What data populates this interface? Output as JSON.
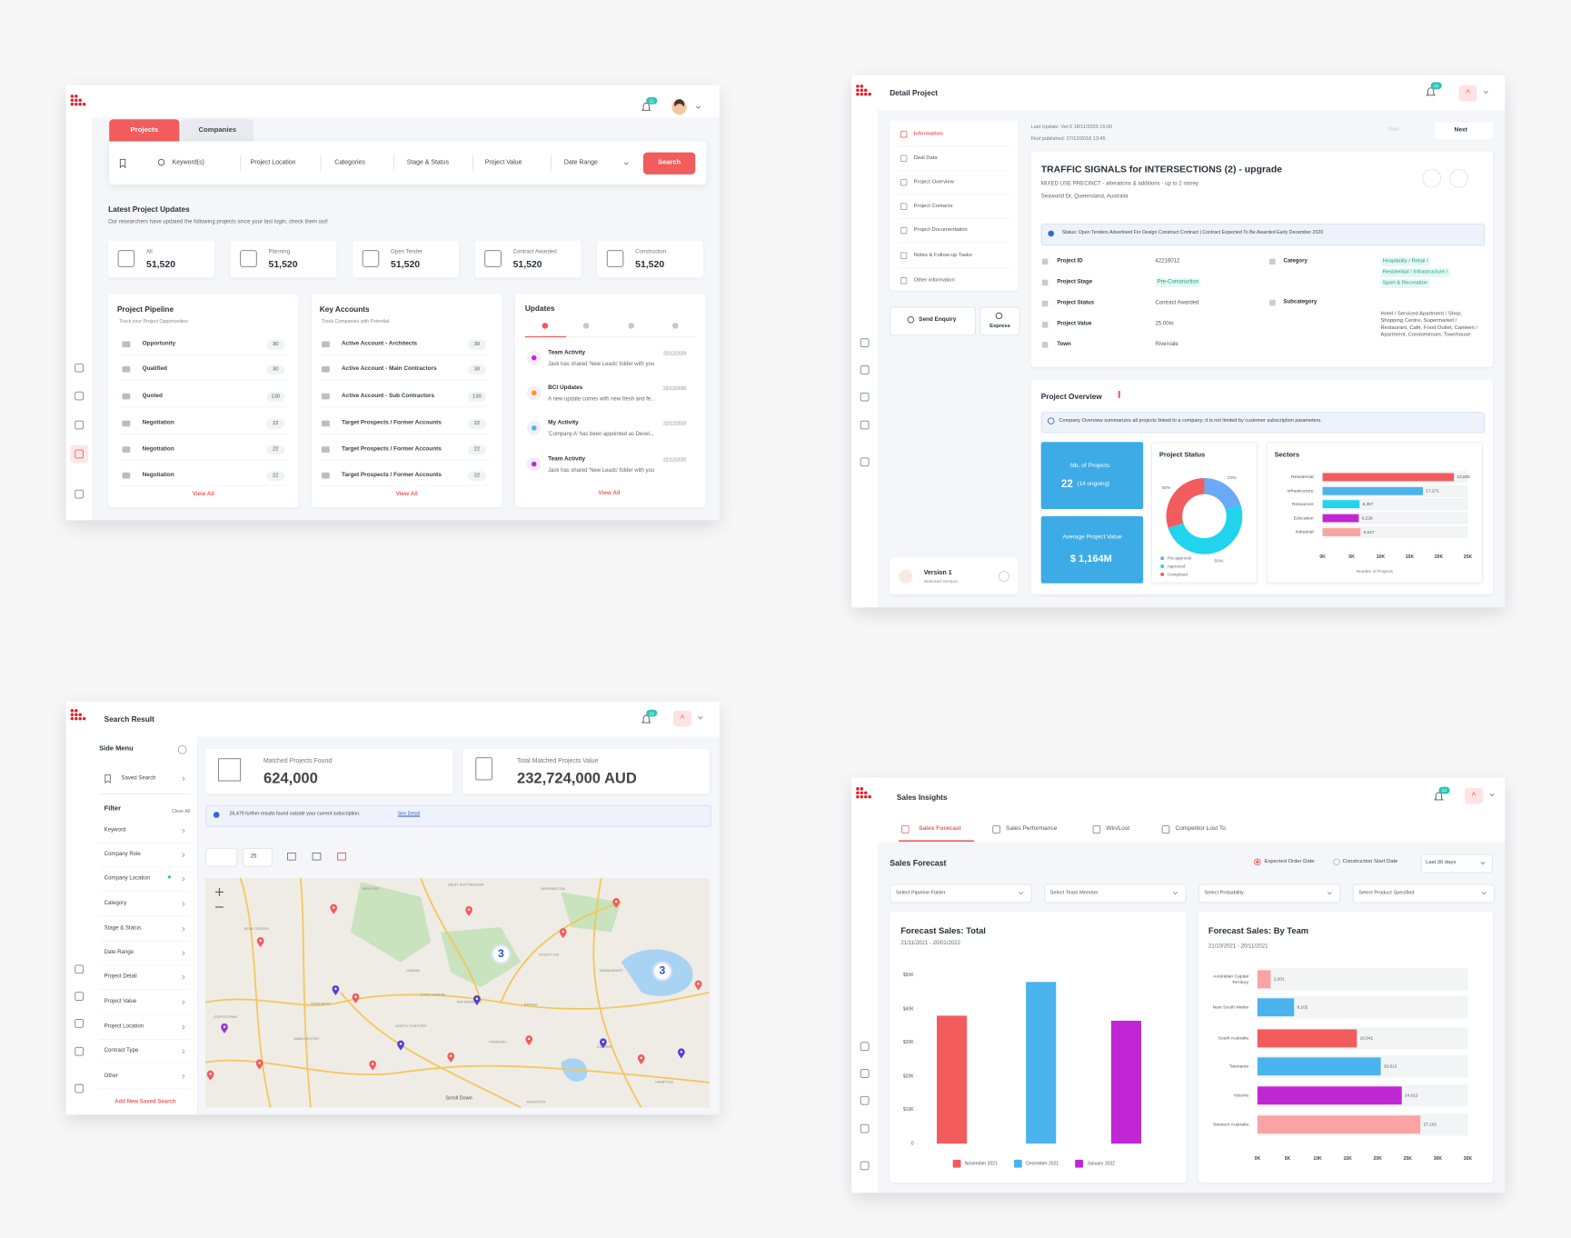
{
  "projects_screen": {
    "notifications": "22",
    "tabs": [
      "Projects",
      "Companies"
    ],
    "search_fields": [
      "Keyword(s)",
      "Project Location",
      "Categories",
      "Stage & Status",
      "Project Value",
      "Date Range"
    ],
    "search_button": "Search",
    "updates_title": "Latest Project Updates",
    "updates_subtitle": "Our researchers have updated the following projects since your last login, check them out!",
    "stats": [
      {
        "label": "All",
        "value": "51,520"
      },
      {
        "label": "Planning",
        "value": "51,520"
      },
      {
        "label": "Open Tender",
        "value": "51,520"
      },
      {
        "label": "Contract Awarded",
        "value": "51,520"
      },
      {
        "label": "Construction",
        "value": "51,520"
      }
    ],
    "pipeline": {
      "title": "Project Pipeline",
      "subtitle": "Track your Project Opportunities",
      "rows": [
        [
          "Opportunity",
          "30"
        ],
        [
          "Qualified",
          "30"
        ],
        [
          "Quoted",
          "130"
        ],
        [
          "Negotiation",
          "22"
        ],
        [
          "Negotiation",
          "22"
        ],
        [
          "Negotiation",
          "22"
        ]
      ],
      "link": "View All"
    },
    "accounts": {
      "title": "Key Accounts",
      "subtitle": "Track Companies with Potential",
      "rows": [
        [
          "Active Account - Architects",
          "30"
        ],
        [
          "Active Account - Main Contractors",
          "30"
        ],
        [
          "Active Account - Sub Contractors",
          "130"
        ],
        [
          "Target Prospects / Former Accounts",
          "22"
        ],
        [
          "Target Prospects / Former Accounts",
          "22"
        ],
        [
          "Target Prospects / Former Accounts",
          "22"
        ]
      ],
      "link": "View All"
    },
    "updates": {
      "title": "Updates",
      "items": [
        {
          "title": "Team Activity",
          "date": "22/12/2020",
          "text": "Jack has shared 'New Leads' folder with you"
        },
        {
          "title": "BCI Updates",
          "date": "22/12/2020",
          "text": "A new update comes with new fresh and fe..."
        },
        {
          "title": "My Activity",
          "date": "22/12/2020",
          "text": "'Company A' has been appointed as Devel..."
        },
        {
          "title": "Team Activity",
          "date": "22/12/2020",
          "text": "Jack has shared 'New Leads' folder with you"
        }
      ],
      "link": "View All"
    }
  },
  "detail_screen": {
    "title": "Detail Project",
    "notifications": "22",
    "avatar": "A",
    "menu": [
      "Information",
      "Deal Data",
      "Project Overview",
      "Project Contacts",
      "Project Documentation",
      "Notes & Follow-up Tasks",
      "Other information"
    ],
    "send_enquiry": "Send Enquiry",
    "express": "Express",
    "version": "Version 1",
    "version_note": "Selected Version",
    "last_update": "Last Update: Ver.6 18/11/2020 15:00",
    "first_published": "First published: 27/12/2018 13:45",
    "prev": "Prev",
    "next": "Next",
    "project_title": "TRAFFIC SIGNALS for INTERSECTIONS (2) - upgrade",
    "project_subtitle": "MIXED USE PRECINCT - alterations & additions - up to 2 storey",
    "address": "Seaworld Dr, Queensland, Australia",
    "status_banner": "Status: Open Tenders Advertised For Design Construct Contract | Contract Expected To Be Awarded Early December 2020",
    "fields": [
      [
        "Project ID",
        "42216012"
      ],
      [
        "Project Stage",
        "Pre-Construction"
      ],
      [
        "Project Status",
        "Contract Awarded"
      ],
      [
        "Project Value",
        "25.00m"
      ],
      [
        "Town",
        "Rivervale"
      ]
    ],
    "category_label": "Category",
    "categories": [
      "Hospitality / Retail /",
      "Residential / Infrastructure /",
      "Sport & Recreation"
    ],
    "subcategory_label": "Subcategory",
    "subcategory": "Hotel / Serviced Apartment / Shop, Shopping Centre, Supermarket / Restaurant, Café, Food Outlet, Canteen / Apartment, Condominium, Townhouse",
    "overview_title": "Project Overview",
    "overview_info": "Company Overview summarizes all projects linked to a company; it is not limited by customer subscription parameters.",
    "nb_projects_label": "Nb. of Projects",
    "nb_projects": "22",
    "nb_ongoing": "(14 ongoing)",
    "avg_value_label": "Average Project Value",
    "avg_value": "$ 1,164M"
  },
  "search_screen": {
    "title": "Search Result",
    "notifications": "22",
    "avatar": "A",
    "side_menu": "Side Menu",
    "saved_search": "Saved Search",
    "filter": "Filter",
    "clear_all": "Clear All",
    "filters": [
      "Keyword",
      "Company Role",
      "Company Location",
      "Category",
      "Stage & Status",
      "Date Range",
      "Project Detail",
      "Project Value",
      "Project Location",
      "Contract Type",
      "Other"
    ],
    "add_saved": "Add New Saved Search",
    "matched_label": "Matched Projects Found",
    "matched_value": "624,000",
    "total_label": "Total Matched Projects Value",
    "total_value": "232,724,000 AUD",
    "notice": "26,479 further results found outside your current subscription.",
    "notice_link": "See Detail",
    "per_page": "25",
    "clusters": [
      "3",
      "3"
    ],
    "places": [
      "NEW RYE",
      "WEST NOTTINGHAM",
      "BARRINGTON",
      "BOW CENTER",
      "CANDIA",
      "SOUTH LEE",
      "NEWMARKET",
      "EAST CANDIA",
      "RAYMOND",
      "EPPING",
      "HOOKSETT",
      "NORTH CHESTER",
      "MANCHESTER",
      "FREMONT",
      "EXETER",
      "HAMPTON",
      "KINGSTON",
      "GOFFSTOWN"
    ],
    "scroll_down": "Scroll Down"
  },
  "sales_screen": {
    "title": "Sales Insights",
    "notifications": "22",
    "avatar": "A",
    "tabs": [
      "Sales Forecast",
      "Sales Performance",
      "Win/Lost",
      "Competitor Lost To"
    ],
    "heading": "Sales Forecast",
    "radios": [
      "Expected Order Date",
      "Construction Start Date"
    ],
    "period": "Last 30 days",
    "selects": [
      "Select Pipeline Folder",
      "Select Team Member",
      "Select Probability",
      "Select Product Specified"
    ]
  },
  "chart_data": [
    {
      "type": "donut",
      "title": "Project Status",
      "categories": [
        "Pre-approval",
        "Approved",
        "Completed"
      ],
      "values": [
        20,
        50,
        30
      ],
      "value_labels": [
        "20%",
        "50%",
        "30%"
      ],
      "colors": [
        "#6aa9f5",
        "#22d3ee",
        "#f25c5c"
      ]
    },
    {
      "type": "bar",
      "horizontal": true,
      "title": "Sectors",
      "categories": [
        "Residential",
        "Infrastructure",
        "Resources",
        "Education",
        "Industrial"
      ],
      "values": [
        22605,
        17271,
        6367,
        6228,
        6527
      ],
      "value_labels": [
        "22,605",
        "17,271",
        "6,367",
        "6,228",
        "6,527"
      ],
      "colors": [
        "#f25c5c",
        "#4bb3ee",
        "#22d3ee",
        "#c026d3",
        "#f9a3a3"
      ],
      "xlim": [
        0,
        25000
      ],
      "xticks": [
        {
          "value": 0,
          "label": "0K"
        },
        {
          "value": 5000,
          "label": "5K"
        },
        {
          "value": 10000,
          "label": "10K"
        },
        {
          "value": 15000,
          "label": "15K"
        },
        {
          "value": 20000,
          "label": "20K"
        },
        {
          "value": 25000,
          "label": "25K"
        }
      ],
      "x_label": "Number of Projects"
    },
    {
      "type": "bar",
      "title": "Forecast Sales: Total",
      "subtitle": "21/11/2021 - 20/01/2022",
      "categories": [
        null
      ],
      "series": [
        {
          "name": "November 2021",
          "color": "#f25c5c",
          "values": [
            38000
          ]
        },
        {
          "name": "December 2021",
          "color": "#4bb3ee",
          "values": [
            48000
          ]
        },
        {
          "name": "January 2022",
          "color": "#c026d3",
          "values": [
            36500
          ]
        }
      ],
      "ylim": [
        0,
        50000
      ],
      "yticks": [
        0,
        {
          "value": 10000,
          "label": "$10K"
        },
        {
          "value": 20000,
          "label": "$20K"
        },
        {
          "value": 30000,
          "label": "$30K"
        },
        {
          "value": 40000,
          "label": "$40K"
        },
        {
          "value": 50000,
          "label": "$50K"
        }
      ]
    },
    {
      "type": "bar",
      "horizontal": true,
      "title": "Forecast Sales: By Team",
      "subtitle": "21/10/2021 - 20/11/2021",
      "categories": [
        "Australian Capital Territory",
        "New South Wales",
        "South Australia",
        "Tasmania",
        "Victoria",
        "Western Australia"
      ],
      "values": [
        2201,
        6102,
        16541,
        20512,
        24012,
        27102
      ],
      "value_labels": [
        "2,201",
        "6,102",
        "16,541",
        "20,512",
        "24,012",
        "27,102"
      ],
      "colors": [
        "#f9a3a3",
        "#4bb3ee",
        "#f25c5c",
        "#4bb3ee",
        "#c026d3",
        "#f9a3a3"
      ],
      "xlim": [
        0,
        35000
      ],
      "xticks": [
        {
          "value": 0,
          "label": "0K"
        },
        {
          "value": 5000,
          "label": "5K"
        },
        {
          "value": 10000,
          "label": "10K"
        },
        {
          "value": 15000,
          "label": "15K"
        },
        {
          "value": 20000,
          "label": "20K"
        },
        {
          "value": 25000,
          "label": "25K"
        },
        {
          "value": 30000,
          "label": "30K"
        },
        {
          "value": 35000,
          "label": "35K"
        }
      ]
    }
  ]
}
